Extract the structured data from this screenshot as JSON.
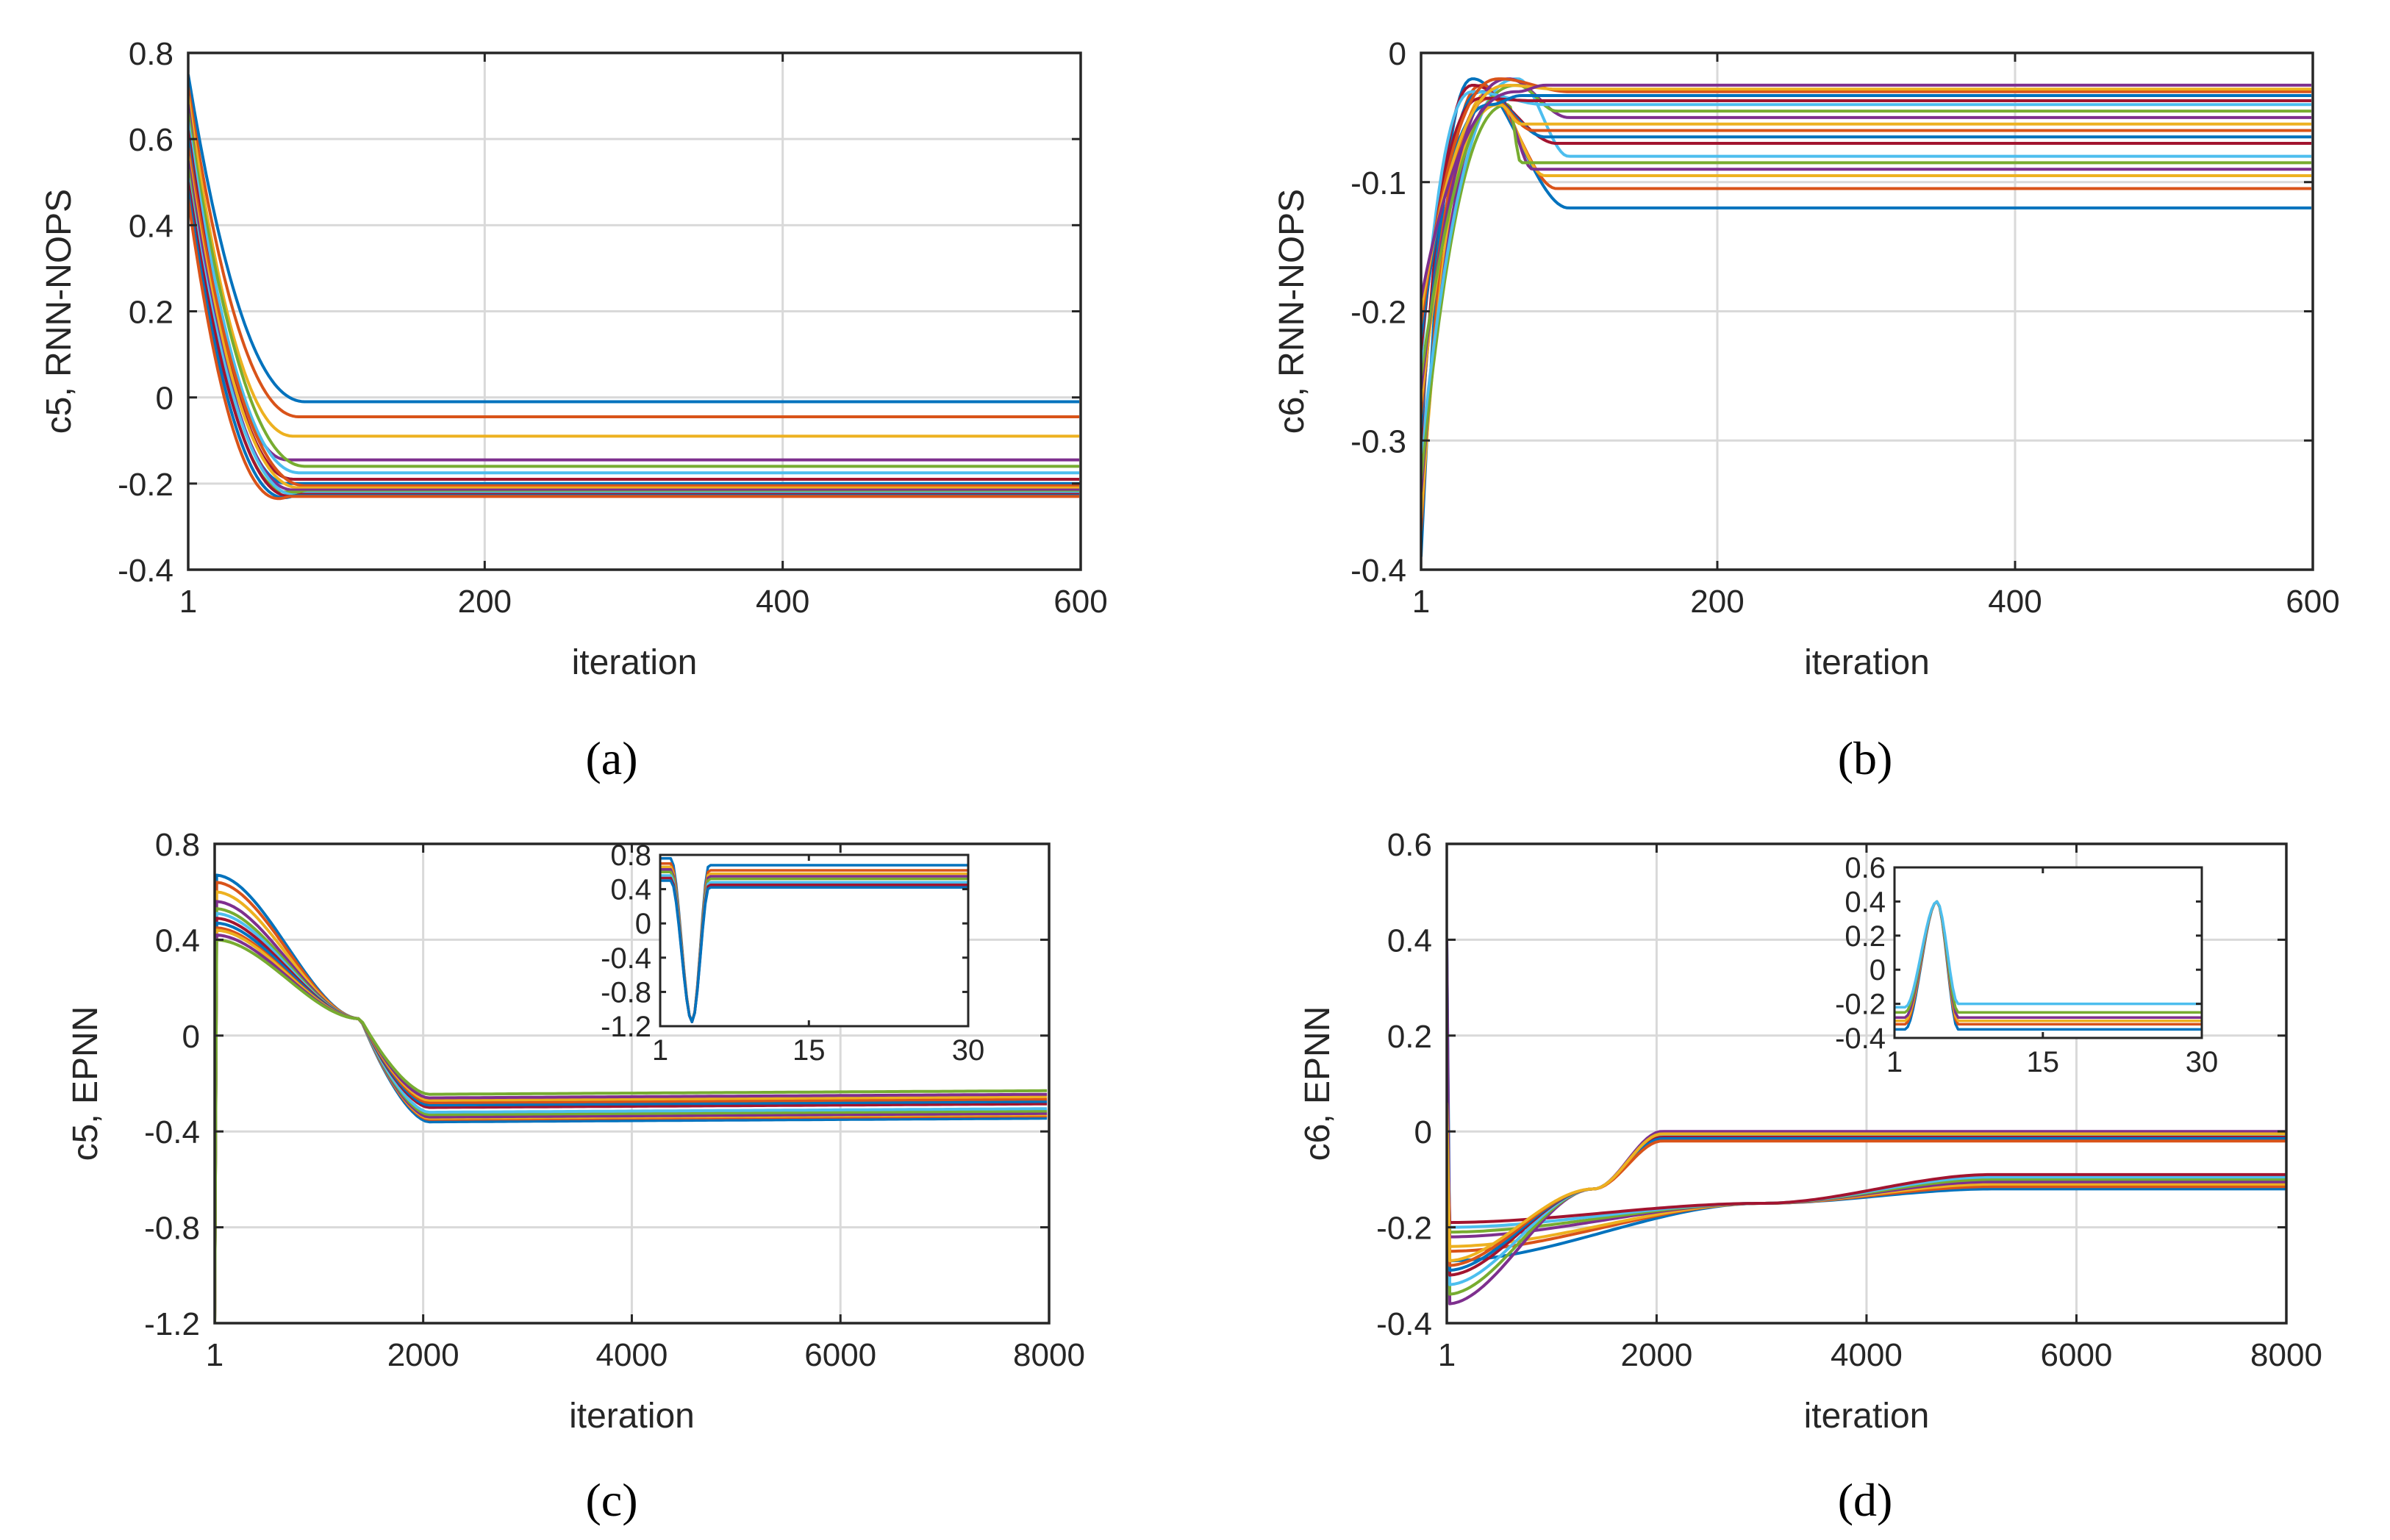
{
  "figure": {
    "captions": [
      "(a)",
      "(b)",
      "(c)",
      "(d)"
    ]
  },
  "colors": [
    "#0072BD",
    "#D95319",
    "#EDB120",
    "#7E2F8E",
    "#77AC30",
    "#4DBEEE",
    "#A2142F"
  ],
  "chart_data": [
    {
      "id": "a",
      "type": "line",
      "caption_letter": "a",
      "xlabel": "iteration",
      "ylabel": "c5, RNN-NOPS",
      "xlim": [
        1,
        600
      ],
      "ylim": [
        -0.4,
        0.8
      ],
      "xticks": [
        1,
        200,
        400,
        600
      ],
      "yticks": [
        -0.4,
        -0.2,
        0,
        0.2,
        0.4,
        0.6,
        0.8
      ],
      "grid": true,
      "series_shape": "decay_from_start_to_plateau",
      "transition_end_x": 80,
      "starts": [
        0.75,
        0.72,
        0.7,
        0.68,
        0.66,
        0.64,
        0.62,
        0.6,
        0.58,
        0.56,
        0.55,
        0.53,
        0.51,
        0.5,
        0.48,
        0.46
      ],
      "plateaus": [
        -0.01,
        -0.045,
        -0.09,
        -0.145,
        -0.16,
        -0.175,
        -0.19,
        -0.2,
        -0.205,
        -0.21,
        -0.215,
        -0.22,
        -0.222,
        -0.225,
        -0.228,
        -0.23
      ]
    },
    {
      "id": "b",
      "type": "line",
      "caption_letter": "b",
      "xlabel": "iteration",
      "ylabel": "c6, RNN-NOPS",
      "xlim": [
        1,
        600
      ],
      "ylim": [
        -0.4,
        0
      ],
      "xticks": [
        1,
        200,
        400,
        600
      ],
      "yticks": [
        -0.4,
        -0.3,
        -0.2,
        -0.1,
        0
      ],
      "grid": true,
      "series_shape": "rise_overshoot_to_plateau",
      "transition_end_x": 100,
      "starts": [
        -0.39,
        -0.37,
        -0.36,
        -0.34,
        -0.33,
        -0.31,
        -0.3,
        -0.29,
        -0.28,
        -0.27,
        -0.26,
        -0.25,
        -0.24,
        -0.23,
        -0.22,
        -0.21,
        -0.2,
        -0.19
      ],
      "plateaus": [
        -0.12,
        -0.105,
        -0.095,
        -0.09,
        -0.085,
        -0.08,
        -0.07,
        -0.065,
        -0.06,
        -0.055,
        -0.05,
        -0.045,
        -0.04,
        -0.037,
        -0.033,
        -0.03,
        -0.028,
        -0.025
      ]
    },
    {
      "id": "c",
      "type": "line",
      "caption_letter": "c",
      "xlabel": "iteration",
      "ylabel": "c5, EPNN",
      "xlim": [
        1,
        8000
      ],
      "ylim": [
        -1.2,
        0.8
      ],
      "xticks": [
        1,
        2000,
        4000,
        6000,
        8000
      ],
      "yticks": [
        -1.2,
        -0.8,
        -0.4,
        0,
        0.4,
        0.8
      ],
      "grid": true,
      "series_shape": "s_curve_through_crossing",
      "crossing": [
        1400,
        0.07
      ],
      "transition_end_x": 2050,
      "starts": [
        0.67,
        0.64,
        0.6,
        0.56,
        0.53,
        0.51,
        0.49,
        0.47,
        0.45,
        0.44,
        0.42,
        0.4
      ],
      "plateaus": [
        -0.36,
        -0.35,
        -0.345,
        -0.34,
        -0.33,
        -0.32,
        -0.3,
        -0.29,
        -0.28,
        -0.27,
        -0.26,
        -0.245
      ],
      "initial_spike_to": -1.2,
      "inset": {
        "xlim": [
          1,
          30
        ],
        "ylim": [
          -1.2,
          0.8
        ],
        "xticks": [
          1,
          15,
          30
        ],
        "yticks": [
          -1.2,
          -0.8,
          -0.4,
          0,
          0.4,
          0.8
        ],
        "dip_x": 4,
        "dip_y": -1.15,
        "recover_x": 5,
        "plateaus": [
          0.68,
          0.62,
          0.58,
          0.55,
          0.52,
          0.48,
          0.45,
          0.42
        ]
      }
    },
    {
      "id": "d",
      "type": "line",
      "caption_letter": "d",
      "xlabel": "iteration",
      "ylabel": "c6, EPNN",
      "xlim": [
        1,
        8000
      ],
      "ylim": [
        -0.4,
        0.6
      ],
      "xticks": [
        1,
        2000,
        4000,
        6000,
        8000
      ],
      "yticks": [
        -0.4,
        -0.2,
        0,
        0.2,
        0.4,
        0.6
      ],
      "grid": true,
      "series_shape": "two_groups_converging",
      "group_fast": {
        "crossing": [
          1400,
          -0.12
        ],
        "transition_end_x": 2050,
        "starts": [
          -0.36,
          -0.34,
          -0.32,
          -0.3,
          -0.29,
          -0.28,
          -0.27
        ],
        "plateaus": [
          0.0,
          -0.005,
          -0.01,
          -0.012,
          -0.015,
          -0.02,
          -0.005
        ]
      },
      "group_slow": {
        "crossing": [
          3000,
          -0.15
        ],
        "transition_end_x": 5200,
        "starts": [
          -0.27,
          -0.25,
          -0.24,
          -0.22,
          -0.21,
          -0.2,
          -0.19
        ],
        "plateaus": [
          -0.12,
          -0.115,
          -0.11,
          -0.105,
          -0.1,
          -0.095,
          -0.09
        ]
      },
      "initial_spike_to": 0.4,
      "inset": {
        "xlim": [
          1,
          30
        ],
        "ylim": [
          -0.4,
          0.6
        ],
        "xticks": [
          1,
          15,
          30
        ],
        "yticks": [
          -0.4,
          -0.2,
          0,
          0.2,
          0.4,
          0.6
        ],
        "peak_x": 5,
        "peak_y": 0.4,
        "settle_x": 7,
        "starts": [
          -0.35,
          -0.32,
          -0.3,
          -0.28,
          -0.25,
          -0.22
        ],
        "plateaus": [
          -0.35,
          -0.32,
          -0.3,
          -0.28,
          -0.25,
          -0.2
        ]
      }
    }
  ]
}
